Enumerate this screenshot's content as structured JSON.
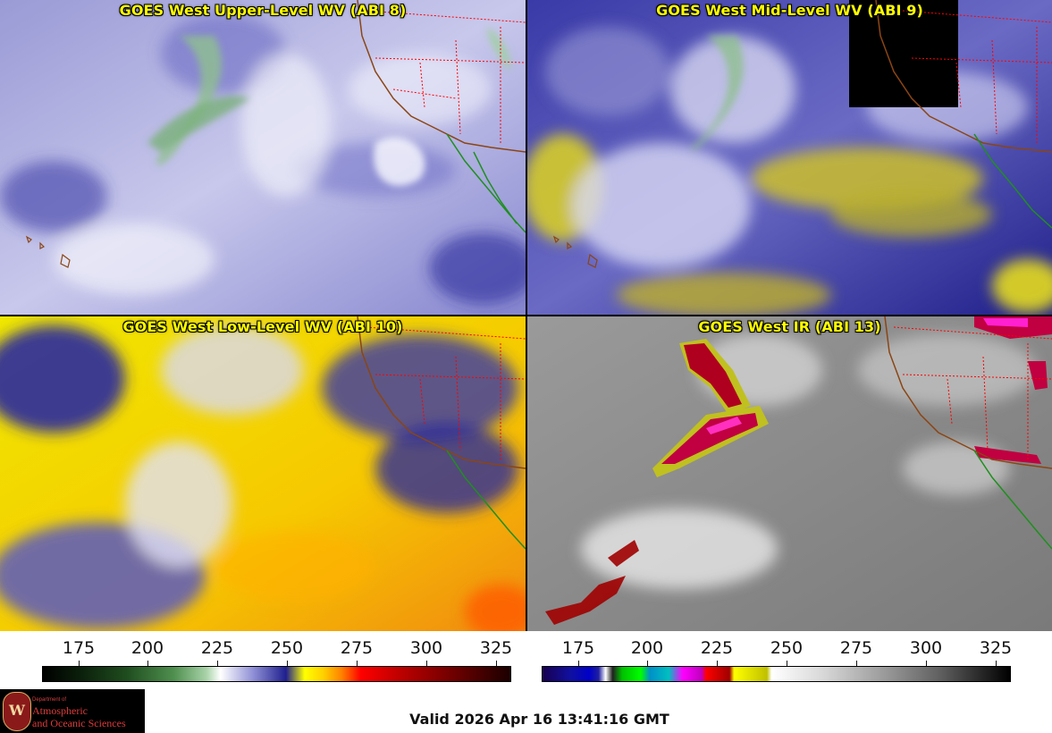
{
  "panels": [
    {
      "title": "GOES West Upper-Level WV (ABI 8)",
      "product": "upper-wv"
    },
    {
      "title": "GOES West Mid-Level WV (ABI 9)",
      "product": "mid-wv"
    },
    {
      "title": "GOES West Low-Level WV (ABI 10)",
      "product": "low-wv"
    },
    {
      "title": "GOES West IR (ABI 13)",
      "product": "ir"
    }
  ],
  "colorbars": {
    "wv": {
      "ticks": [
        "175",
        "200",
        "225",
        "250",
        "275",
        "300",
        "325"
      ]
    },
    "ir": {
      "ticks": [
        "175",
        "200",
        "225",
        "250",
        "275",
        "300",
        "325"
      ]
    }
  },
  "logo": {
    "dept": "Department of",
    "line1": "Atmospheric",
    "line2": "and Oceanic Sciences",
    "seal": "W"
  },
  "footer": {
    "valid": "Valid 2026 Apr 16 13:41:16 GMT"
  },
  "colors": {
    "title": "#ffff00",
    "coast": "#8b4513",
    "state_border": "#ff0000",
    "mexico_coast": "#1f8f1f"
  }
}
